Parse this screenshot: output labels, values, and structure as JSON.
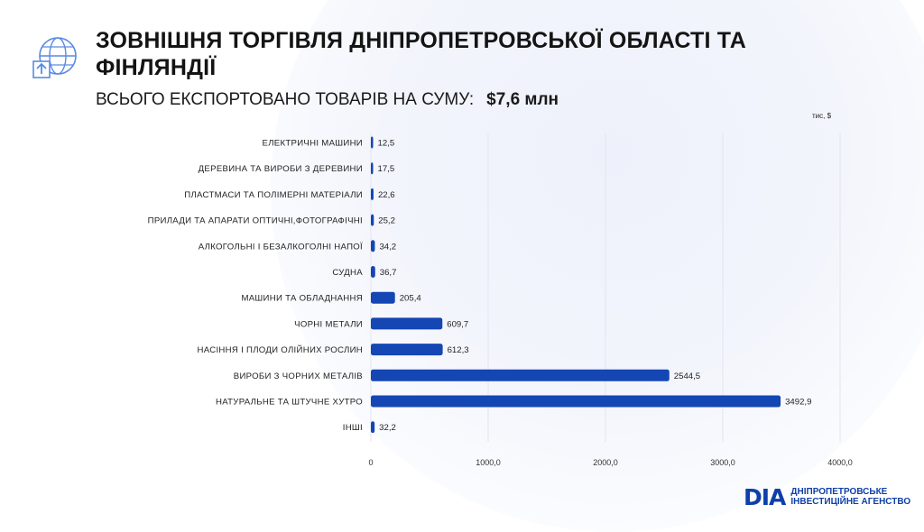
{
  "header": {
    "title": "ЗОВНІШНЯ ТОРГІВЛЯ ДНІПРОПЕТРОВСЬКОЇ ОБЛАСТІ ТА ФІНЛЯНДІЇ",
    "subtitle_label": "ВСЬОГО ЕКСПОРТОВАНО ТОВАРІВ НА СУМУ:",
    "subtitle_value": "$7,6 млн"
  },
  "chart_data": {
    "type": "bar",
    "orientation": "horizontal",
    "unit_label": "тис, $",
    "categories": [
      "ЕЛЕКТРИЧНІ МАШИНИ",
      "ДЕРЕВИНА ТА ВИРОБИ З ДЕРЕВИНИ",
      "ПЛАСТМАСИ ТА ПОЛІМЕРНІ МАТЕРІАЛИ",
      "ПРИЛАДИ ТА АПАРАТИ ОПТИЧНІ,ФОТОГРАФІЧНІ",
      "АЛКОГОЛЬНІ І БЕЗАЛКОГОЛНІ НАПОЇ",
      "СУДНА",
      "МАШИНИ ТА ОБЛАДНАННЯ",
      "ЧОРНІ МЕТАЛИ",
      "НАСІННЯ І ПЛОДИ ОЛІЙНИХ РОСЛИН",
      "ВИРОБИ З ЧОРНИХ МЕТАЛІВ",
      "НАТУРАЛЬНЕ ТА ШТУЧНЕ ХУТРО",
      "ІНШІ"
    ],
    "values": [
      12.5,
      17.5,
      22.6,
      25.2,
      34.2,
      36.7,
      205.4,
      609.7,
      612.3,
      2544.5,
      3492.9,
      32.2
    ],
    "value_labels": [
      "12,5",
      "17,5",
      "22,6",
      "25,2",
      "34,2",
      "36,7",
      "205,4",
      "609,7",
      "612,3",
      "2544,5",
      "3492,9",
      "32,2"
    ],
    "x_ticks": [
      0,
      1000,
      2000,
      3000,
      4000
    ],
    "x_tick_labels": [
      "0",
      "1000,0",
      "2000,0",
      "3000,0",
      "4000,0"
    ],
    "xlim": [
      0,
      4000
    ],
    "grid": true,
    "bar_color": "#1446b4"
  },
  "brand": {
    "mark": "DIA",
    "line1": "ДНІПРОПЕТРОВСЬКЕ",
    "line2": "ІНВЕСТИЦІЙНЕ АГЕНСТВО",
    "color": "#0f3fa8"
  }
}
